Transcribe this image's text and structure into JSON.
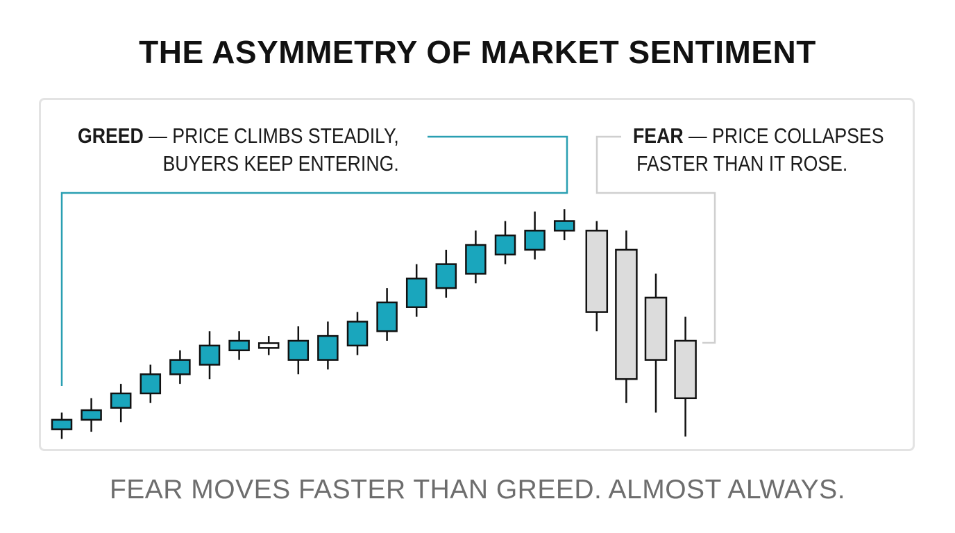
{
  "title": "THE ASYMMETRY OF MARKET SENTIMENT",
  "footer": "FEAR MOVES FASTER THAN GREED. ALMOST ALWAYS.",
  "greed_callout": {
    "label": "GREED",
    "dash": " — ",
    "line1": "PRICE CLIMBS STEADILY,",
    "line2": "BUYERS KEEP ENTERING."
  },
  "fear_callout": {
    "label": "FEAR",
    "dash": " — ",
    "line1": "PRICE COLLAPSES",
    "line2": "FASTER THAN IT ROSE."
  },
  "colors": {
    "greed": "#1aa6bd",
    "fear": "#dcdcdc",
    "neutral": "#ffffff",
    "greed_callout_line": "#2a9fb2",
    "fear_callout_line": "#cfcfcf",
    "outline": "#111111"
  },
  "chart_data": {
    "type": "candlestick",
    "y_axis_visible": false,
    "x_axis_visible": false,
    "candles": [
      {
        "open": 1.5,
        "close": 3.5,
        "high": 5.0,
        "low": -0.5,
        "phase": "greed"
      },
      {
        "open": 3.5,
        "close": 5.5,
        "high": 8.0,
        "low": 1.0,
        "phase": "greed"
      },
      {
        "open": 6.0,
        "close": 9.0,
        "high": 11.0,
        "low": 3.0,
        "phase": "greed"
      },
      {
        "open": 9.0,
        "close": 13.0,
        "high": 15.0,
        "low": 7.0,
        "phase": "greed"
      },
      {
        "open": 13.0,
        "close": 16.0,
        "high": 18.0,
        "low": 11.0,
        "phase": "greed"
      },
      {
        "open": 15.0,
        "close": 19.0,
        "high": 22.0,
        "low": 12.0,
        "phase": "greed"
      },
      {
        "open": 18.0,
        "close": 20.0,
        "high": 22.0,
        "low": 16.0,
        "phase": "greed"
      },
      {
        "open": 18.5,
        "close": 19.5,
        "high": 21.0,
        "low": 17.0,
        "phase": "neutral"
      },
      {
        "open": 16.0,
        "close": 20.0,
        "high": 23.0,
        "low": 13.0,
        "phase": "greed"
      },
      {
        "open": 16.0,
        "close": 21.0,
        "high": 24.0,
        "low": 14.0,
        "phase": "greed"
      },
      {
        "open": 19.0,
        "close": 24.0,
        "high": 26.0,
        "low": 17.0,
        "phase": "greed"
      },
      {
        "open": 22.0,
        "close": 28.0,
        "high": 31.0,
        "low": 20.0,
        "phase": "greed"
      },
      {
        "open": 27.0,
        "close": 33.0,
        "high": 36.0,
        "low": 25.0,
        "phase": "greed"
      },
      {
        "open": 31.0,
        "close": 36.0,
        "high": 39.0,
        "low": 29.0,
        "phase": "greed"
      },
      {
        "open": 34.0,
        "close": 40.0,
        "high": 43.0,
        "low": 32.0,
        "phase": "greed"
      },
      {
        "open": 38.0,
        "close": 42.0,
        "high": 45.0,
        "low": 36.0,
        "phase": "greed"
      },
      {
        "open": 39.0,
        "close": 43.0,
        "high": 47.0,
        "low": 37.0,
        "phase": "greed"
      },
      {
        "open": 43.0,
        "close": 45.0,
        "high": 47.5,
        "low": 41.0,
        "phase": "greed"
      },
      {
        "open": 43.0,
        "close": 26.0,
        "high": 45.0,
        "low": 22.0,
        "phase": "fear"
      },
      {
        "open": 39.0,
        "close": 12.0,
        "high": 43.0,
        "low": 7.0,
        "phase": "fear"
      },
      {
        "open": 29.0,
        "close": 16.0,
        "high": 34.0,
        "low": 5.0,
        "phase": "fear"
      },
      {
        "open": 20.0,
        "close": 8.0,
        "high": 25.0,
        "low": 0.0,
        "phase": "fear"
      }
    ]
  }
}
